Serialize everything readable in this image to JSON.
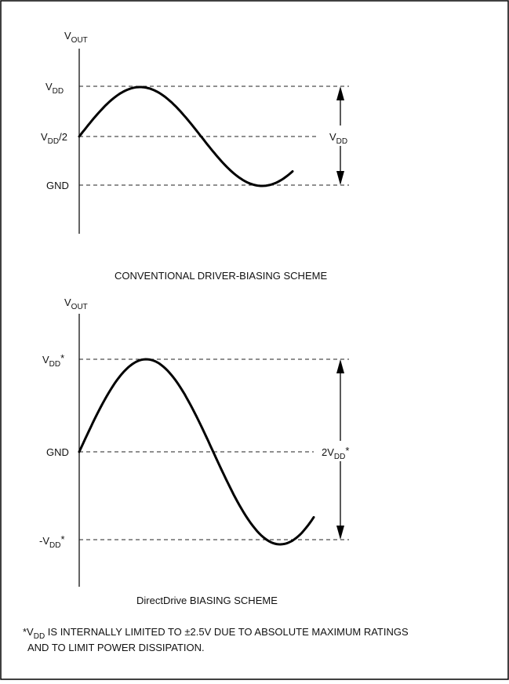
{
  "top": {
    "y_axis": {
      "main": "V",
      "sub": "OUT"
    },
    "levels": {
      "high": {
        "main": "V",
        "sub": "DD"
      },
      "mid": {
        "main": "V",
        "sub": "DD",
        "suffix": "/2"
      },
      "low": {
        "main": "GND"
      }
    },
    "swing": {
      "main": "V",
      "sub": "DD"
    },
    "caption": "CONVENTIONAL DRIVER-BIASING SCHEME"
  },
  "bottom": {
    "y_axis": {
      "main": "V",
      "sub": "OUT"
    },
    "levels": {
      "high": {
        "main": "V",
        "sub": "DD",
        "suffix": "*"
      },
      "mid": {
        "main": "GND"
      },
      "low": {
        "prefix": "-V",
        "sub": "DD",
        "suffix": "*"
      }
    },
    "swing": {
      "prefix": "2V",
      "sub": "DD",
      "suffix": "*"
    },
    "caption": "DirectDrive BIASING SCHEME"
  },
  "footnote": {
    "line1_a": "*V",
    "line1_sub": "DD",
    "line1_b": " IS INTERNALLY LIMITED TO ±2.5V DUE TO ABSOLUTE MAXIMUM RATINGS",
    "line2": "AND TO LIMIT POWER DISSIPATION."
  }
}
